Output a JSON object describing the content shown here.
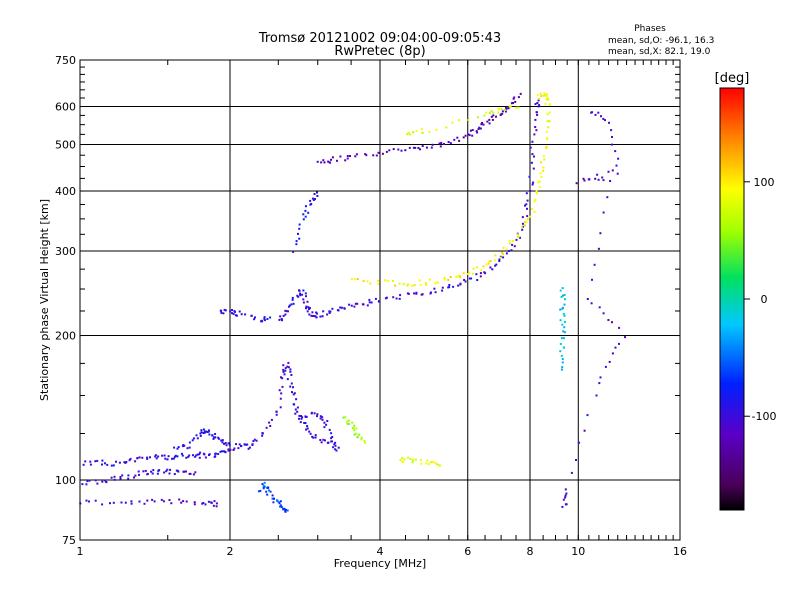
{
  "chart_data": {
    "type": "scatter",
    "title": "Tromsø 20121002 09:04:00-09:05:43",
    "subtitle": "RwPretec (8p)",
    "xlabel": "Frequency [MHz]",
    "ylabel": "Stationary phase Virtual Height [km]",
    "x_scale": "log",
    "y_scale": "log",
    "xlim": [
      1,
      16
    ],
    "ylim": [
      75,
      750
    ],
    "x_ticks": [
      1,
      2,
      4,
      6,
      8,
      10,
      16
    ],
    "y_ticks": [
      75,
      100,
      200,
      300,
      400,
      500,
      600,
      750
    ],
    "x_grid_lines": [
      1,
      2,
      4,
      6,
      8,
      10,
      16
    ],
    "y_grid_lines": [
      75,
      100,
      200,
      300,
      400,
      500,
      600,
      750
    ],
    "phase_info": {
      "title": "Phases",
      "line_o": "mean, sd,O: -96.1, 16.3",
      "line_x": "mean, sd,X:  82.1, 19.0"
    },
    "colorbar": {
      "label": "[deg]",
      "range": [
        -180,
        180
      ],
      "ticks": [
        100,
        0,
        -100
      ],
      "colormap": "rainbow (black-purple-blue-cyan-green-yellow-red)"
    },
    "traces": [
      {
        "name": "",
        "phase": -95,
        "points": [
          [
            1.0,
            108
          ],
          [
            1.1,
            109
          ],
          [
            1.2,
            108
          ],
          [
            1.3,
            111
          ],
          [
            1.4,
            112
          ],
          [
            1.5,
            111
          ],
          [
            1.6,
            112
          ],
          [
            1.7,
            113
          ],
          [
            1.8,
            112
          ],
          [
            1.9,
            114
          ],
          [
            2.0,
            116
          ],
          [
            2.1,
            118
          ],
          [
            2.2,
            117
          ]
        ]
      },
      {
        "name": "",
        "phase": -100,
        "points": [
          [
            1.0,
            98
          ],
          [
            1.1,
            99
          ],
          [
            1.2,
            101
          ],
          [
            1.3,
            103
          ],
          [
            1.4,
            104
          ],
          [
            1.5,
            104
          ],
          [
            1.6,
            104
          ],
          [
            1.7,
            103
          ]
        ]
      },
      {
        "name": "",
        "phase": -105,
        "points": [
          [
            1.0,
            90
          ],
          [
            1.2,
            90
          ],
          [
            1.4,
            90
          ],
          [
            1.6,
            90
          ],
          [
            1.8,
            90
          ],
          [
            1.9,
            89
          ]
        ]
      },
      {
        "name": "",
        "phase": -95,
        "points": [
          [
            1.55,
            116
          ],
          [
            1.65,
            118
          ],
          [
            1.75,
            126
          ],
          [
            1.8,
            127
          ],
          [
            1.85,
            124
          ],
          [
            1.9,
            121
          ],
          [
            2.0,
            119
          ]
        ]
      },
      {
        "name": "",
        "phase": -100,
        "points": [
          [
            2.2,
            118
          ],
          [
            2.35,
            125
          ],
          [
            2.5,
            140
          ],
          [
            2.55,
            165
          ],
          [
            2.6,
            175
          ],
          [
            2.65,
            160
          ],
          [
            2.7,
            145
          ],
          [
            2.75,
            135
          ],
          [
            2.85,
            128
          ],
          [
            3.0,
            122
          ],
          [
            3.2,
            118
          ]
        ]
      },
      {
        "name": "",
        "phase": -95,
        "points": [
          [
            2.8,
            135
          ],
          [
            3.0,
            138
          ],
          [
            3.1,
            132
          ],
          [
            3.2,
            120
          ],
          [
            3.3,
            116
          ]
        ]
      },
      {
        "name": "",
        "phase": 60,
        "points": [
          [
            3.4,
            135
          ],
          [
            3.5,
            130
          ],
          [
            3.6,
            125
          ],
          [
            3.7,
            120
          ]
        ]
      },
      {
        "name": "",
        "phase": -100,
        "points": [
          [
            2.5,
            215
          ],
          [
            2.6,
            225
          ],
          [
            2.7,
            240
          ],
          [
            2.8,
            250
          ],
          [
            2.85,
            230
          ],
          [
            2.9,
            222
          ],
          [
            3.0,
            220
          ],
          [
            3.2,
            225
          ],
          [
            3.4,
            230
          ],
          [
            3.7,
            233
          ],
          [
            4.0,
            237
          ],
          [
            4.5,
            242
          ],
          [
            5.0,
            246
          ],
          [
            5.5,
            252
          ],
          [
            6.0,
            260
          ],
          [
            6.5,
            270
          ],
          [
            7.0,
            285
          ],
          [
            7.5,
            310
          ],
          [
            7.8,
            350
          ],
          [
            8.0,
            400
          ],
          [
            8.1,
            480
          ],
          [
            8.2,
            580
          ],
          [
            8.3,
            620
          ]
        ]
      },
      {
        "name": "",
        "phase": 95,
        "points": [
          [
            3.5,
            260
          ],
          [
            4.0,
            258
          ],
          [
            4.5,
            256
          ],
          [
            5.0,
            258
          ],
          [
            5.5,
            262
          ],
          [
            6.0,
            268
          ],
          [
            6.5,
            280
          ],
          [
            7.0,
            295
          ],
          [
            7.5,
            320
          ],
          [
            8.0,
            350
          ],
          [
            8.3,
            400
          ],
          [
            8.5,
            450
          ],
          [
            8.6,
            520
          ],
          [
            8.7,
            600
          ],
          [
            8.6,
            640
          ],
          [
            8.3,
            630
          ]
        ]
      },
      {
        "name": "",
        "phase": -120,
        "points": [
          [
            3.0,
            460
          ],
          [
            3.2,
            465
          ],
          [
            3.5,
            470
          ],
          [
            4.0,
            478
          ],
          [
            4.5,
            488
          ],
          [
            5.0,
            495
          ],
          [
            5.5,
            505
          ],
          [
            6.0,
            520
          ],
          [
            6.3,
            540
          ],
          [
            6.6,
            560
          ],
          [
            7.0,
            580
          ],
          [
            7.3,
            600
          ],
          [
            7.6,
            630
          ]
        ]
      },
      {
        "name": "",
        "phase": 80,
        "points": [
          [
            4.5,
            530
          ],
          [
            5.0,
            535
          ],
          [
            6.5,
            580
          ],
          [
            7.0,
            590
          ],
          [
            7.5,
            600
          ]
        ]
      },
      {
        "name": "",
        "phase": -90,
        "points": [
          [
            2.7,
            300
          ],
          [
            2.8,
            350
          ],
          [
            2.9,
            380
          ],
          [
            3.0,
            395
          ]
        ]
      },
      {
        "name": "",
        "phase": -95,
        "points": [
          [
            1.9,
            225
          ],
          [
            2.0,
            224
          ],
          [
            2.1,
            222
          ],
          [
            2.3,
            215
          ],
          [
            2.4,
            218
          ]
        ]
      },
      {
        "name": "",
        "phase": -60,
        "points": [
          [
            2.3,
            95
          ],
          [
            2.35,
            98
          ],
          [
            2.4,
            93
          ],
          [
            2.5,
            90
          ],
          [
            2.55,
            88
          ],
          [
            2.6,
            86
          ]
        ]
      },
      {
        "name": "",
        "phase": 80,
        "points": [
          [
            4.4,
            110
          ],
          [
            4.6,
            110
          ],
          [
            5.0,
            109
          ],
          [
            5.3,
            108
          ]
        ]
      },
      {
        "name": "",
        "phase": -20,
        "points": [
          [
            9.3,
            250
          ],
          [
            9.3,
            230
          ],
          [
            9.3,
            210
          ],
          [
            9.3,
            190
          ],
          [
            9.3,
            170
          ]
        ]
      },
      {
        "name": "",
        "phase": -110,
        "points": [
          [
            10.6,
            590
          ],
          [
            11.5,
            560
          ],
          [
            12.1,
            440
          ],
          [
            10.0,
            420
          ],
          [
            11.5,
            420
          ],
          [
            10.5,
            240
          ],
          [
            12.3,
            200
          ],
          [
            11.0,
            160
          ],
          [
            9.4,
            95
          ],
          [
            9.4,
            88
          ]
        ]
      }
    ]
  }
}
